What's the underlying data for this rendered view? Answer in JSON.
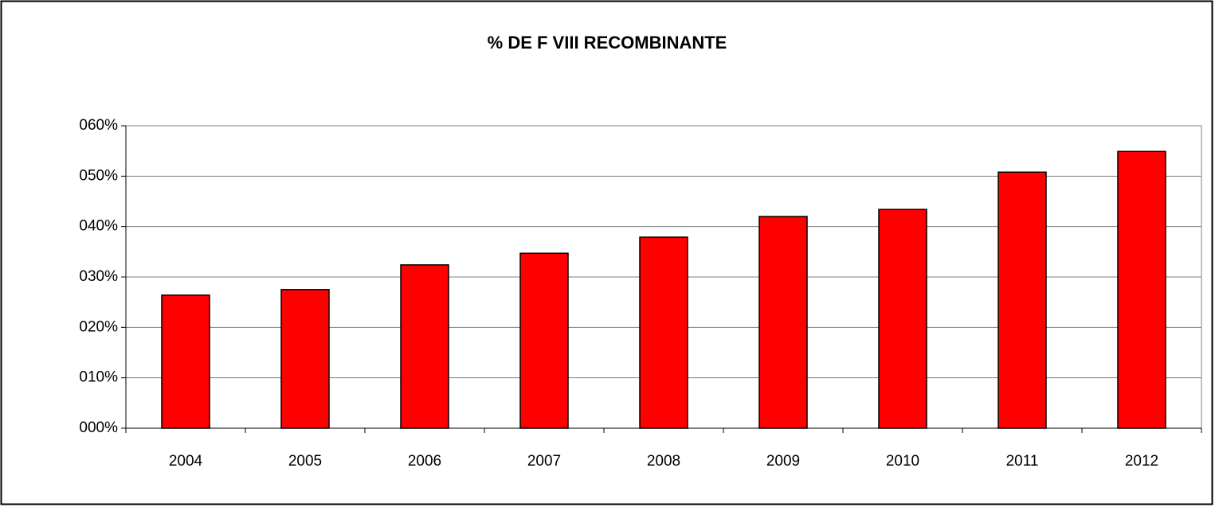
{
  "chart_data": {
    "type": "bar",
    "title": "% DE F VIII RECOMBINANTE",
    "categories": [
      "2004",
      "2005",
      "2006",
      "2007",
      "2008",
      "2009",
      "2010",
      "2011",
      "2012"
    ],
    "values": [
      26.4,
      27.5,
      32.4,
      34.7,
      37.9,
      42.0,
      43.4,
      50.8,
      54.9
    ],
    "color": "#ff0000",
    "ylim": [
      0,
      60
    ],
    "yticks": [
      {
        "value": 0,
        "label": "000%"
      },
      {
        "value": 10,
        "label": "010%"
      },
      {
        "value": 20,
        "label": "020%"
      },
      {
        "value": 30,
        "label": "030%"
      },
      {
        "value": 40,
        "label": "040%"
      },
      {
        "value": 50,
        "label": "050%"
      },
      {
        "value": 60,
        "label": "060%"
      }
    ],
    "grid": true
  }
}
